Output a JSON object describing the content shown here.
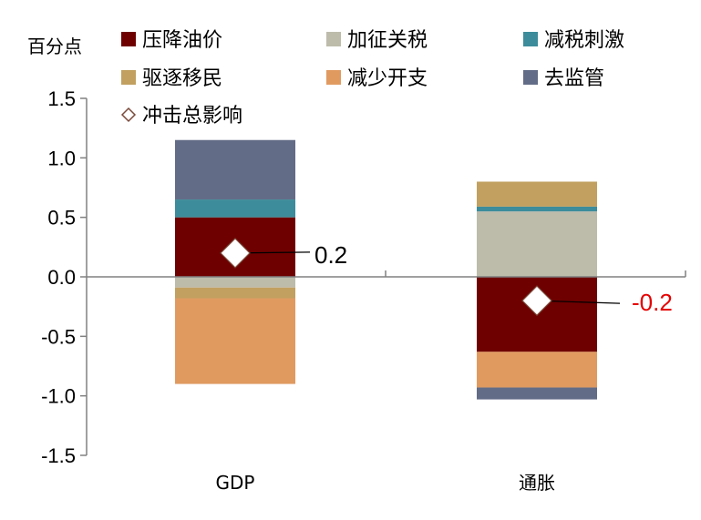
{
  "chart_data": {
    "type": "bar",
    "stacked": true,
    "ylabel": "百分点",
    "ylim": [
      -1.5,
      1.5
    ],
    "yticks": [
      "1.5",
      "1.0",
      "0.5",
      "0.0",
      "-0.5",
      "-1.0",
      "-1.5"
    ],
    "categories": [
      "GDP",
      "通胀"
    ],
    "series": [
      {
        "name": "压降油价",
        "color": "#6e0000",
        "values": [
          0.5,
          -0.63
        ]
      },
      {
        "name": "加征关税",
        "color": "#bdbbaa",
        "values": [
          -0.09,
          0.55
        ]
      },
      {
        "name": "减税刺激",
        "color": "#3c8c9b",
        "values": [
          0.15,
          0.04
        ]
      },
      {
        "name": "驱逐移民",
        "color": "#c1a060",
        "values": [
          -0.09,
          0.21
        ]
      },
      {
        "name": "减少开支",
        "color": "#e09a60",
        "values": [
          -0.72,
          -0.3
        ]
      },
      {
        "name": "去监管",
        "color": "#636c87",
        "values": [
          0.5,
          -0.1
        ]
      }
    ],
    "total": {
      "name": "冲击总影响",
      "values": [
        0.2,
        -0.2
      ],
      "labels": [
        "0.2",
        "-0.2"
      ],
      "label_colors": [
        "#000000",
        "#e60000"
      ]
    },
    "grid": false,
    "legend_position": "top"
  }
}
